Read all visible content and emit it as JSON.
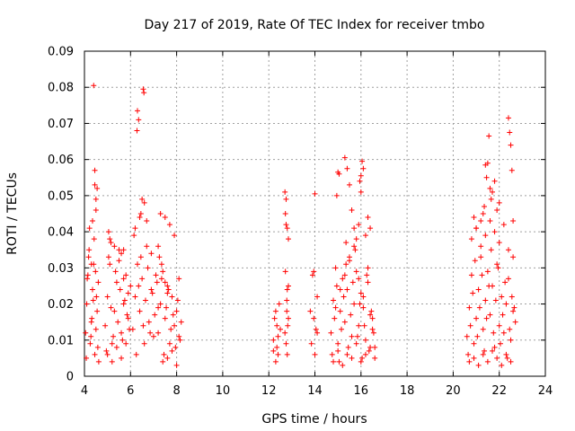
{
  "chart_data": {
    "type": "scatter",
    "title": "Day 217 of 2019, Rate Of TEC Index for receiver tmbo",
    "xlabel": "GPS time / hours",
    "ylabel": "ROTI / TECUs",
    "xlim": [
      4,
      24
    ],
    "ylim": [
      0,
      0.09
    ],
    "xticks": [
      "4",
      "6",
      "8",
      "10",
      "12",
      "14",
      "16",
      "18",
      "20",
      "22",
      "24"
    ],
    "yticks": [
      "0",
      "0.01",
      "0.02",
      "0.03",
      "0.04",
      "0.05",
      "0.06",
      "0.07",
      "0.08",
      "0.09"
    ],
    "grid": true,
    "marker": "+",
    "color": "#ff0000",
    "series": [
      {
        "x": [
          4.05,
          4.1,
          4.15,
          4.2,
          4.25,
          4.3,
          4.35,
          4.4,
          4.45,
          4.5,
          4.55,
          4.6,
          4.08,
          4.18,
          4.28,
          4.38,
          4.48,
          4.58,
          4.12,
          4.22,
          4.32,
          4.42,
          4.52,
          4.62,
          4.4,
          4.45,
          4.55,
          4.5,
          4.35,
          4.3,
          4.45,
          4.5,
          4.9,
          5.0,
          5.1,
          5.2,
          5.3,
          5.4,
          5.5,
          5.6,
          5.7,
          5.8,
          5.9,
          6.0,
          4.95,
          5.05,
          5.15,
          5.25,
          5.35,
          5.45,
          5.55,
          5.65,
          5.75,
          5.85,
          5.95,
          5.1,
          5.3,
          5.5,
          5.7,
          5.9,
          5.0,
          5.2,
          5.4,
          5.6,
          5.8,
          5.05,
          5.15,
          5.6,
          5.7,
          6.1,
          6.2,
          6.3,
          6.4,
          6.5,
          6.6,
          6.7,
          6.8,
          6.9,
          7.0,
          7.1,
          7.2,
          6.15,
          6.25,
          6.35,
          6.45,
          6.55,
          6.65,
          6.75,
          6.85,
          6.95,
          7.05,
          7.15,
          6.3,
          6.35,
          6.28,
          6.55,
          6.58,
          6.5,
          6.6,
          6.45,
          6.4,
          6.2,
          6.7,
          6.9,
          7.2,
          7.3,
          7.4,
          7.5,
          7.6,
          7.7,
          7.8,
          7.9,
          8.0,
          8.1,
          8.2,
          7.25,
          7.35,
          7.45,
          7.55,
          7.65,
          7.75,
          7.85,
          7.95,
          8.05,
          8.15,
          7.3,
          7.5,
          7.7,
          7.9,
          8.1,
          7.4,
          7.6,
          7.8,
          8.0,
          7.35,
          7.2,
          7.5,
          7.6,
          12.2,
          12.3,
          12.4,
          12.5,
          12.25,
          12.35,
          12.45,
          12.3,
          12.4,
          12.2,
          12.35,
          12.7,
          12.75,
          12.8,
          12.85,
          12.72,
          12.78,
          12.82,
          12.75,
          12.8,
          12.7,
          12.85,
          12.78,
          12.75,
          12.8,
          12.72,
          12.85,
          13.8,
          13.9,
          14.0,
          14.1,
          13.85,
          13.95,
          14.05,
          14.0,
          14.1,
          13.95,
          14.7,
          14.8,
          14.9,
          15.0,
          15.1,
          15.2,
          15.3,
          15.4,
          15.5,
          15.6,
          15.7,
          15.8,
          15.9,
          16.0,
          16.1,
          16.2,
          16.3,
          16.4,
          16.5,
          16.6,
          14.75,
          14.85,
          14.95,
          15.05,
          15.15,
          15.25,
          15.35,
          15.45,
          15.55,
          15.65,
          15.75,
          15.85,
          15.95,
          16.05,
          16.15,
          16.25,
          16.35,
          16.45,
          16.55,
          14.8,
          15.0,
          15.2,
          15.4,
          15.6,
          15.8,
          16.0,
          16.2,
          16.4,
          16.6,
          14.9,
          15.1,
          15.3,
          15.5,
          15.7,
          15.9,
          16.1,
          16.3,
          16.5,
          15.0,
          15.05,
          14.95,
          15.3,
          15.4,
          15.5,
          15.6,
          15.7,
          15.8,
          15.9,
          16.0,
          16.05,
          16.1,
          16.0,
          15.95,
          16.3,
          16.4,
          16.2,
          15.35,
          20.6,
          20.7,
          20.8,
          20.9,
          21.0,
          21.1,
          21.2,
          21.3,
          21.4,
          21.5,
          21.6,
          21.7,
          21.8,
          21.9,
          22.0,
          22.1,
          22.2,
          22.3,
          22.4,
          22.5,
          22.6,
          22.7,
          20.65,
          20.75,
          20.85,
          20.95,
          21.05,
          21.15,
          21.25,
          21.35,
          21.45,
          21.55,
          21.65,
          21.75,
          21.85,
          21.95,
          22.05,
          22.15,
          22.25,
          22.35,
          22.45,
          22.55,
          22.65,
          20.7,
          20.9,
          21.1,
          21.3,
          21.5,
          21.7,
          21.9,
          22.1,
          22.3,
          22.5,
          20.8,
          21.0,
          21.2,
          21.4,
          21.6,
          21.8,
          22.0,
          22.2,
          22.4,
          22.6,
          21.4,
          21.5,
          21.45,
          21.55,
          21.6,
          21.65,
          21.3,
          21.35,
          21.2,
          21.8,
          21.7,
          22.4,
          22.45,
          22.5,
          22.55,
          22.6,
          22.0,
          21.9,
          21.0,
          20.9
        ],
        "y": [
          0.012,
          0.02,
          0.028,
          0.035,
          0.009,
          0.015,
          0.024,
          0.031,
          0.006,
          0.013,
          0.018,
          0.026,
          0.005,
          0.033,
          0.011,
          0.021,
          0.029,
          0.008,
          0.027,
          0.041,
          0.016,
          0.038,
          0.022,
          0.004,
          0.0805,
          0.053,
          0.052,
          0.046,
          0.043,
          0.031,
          0.057,
          0.049,
          0.014,
          0.022,
          0.031,
          0.009,
          0.018,
          0.026,
          0.035,
          0.012,
          0.02,
          0.028,
          0.016,
          0.025,
          0.007,
          0.033,
          0.019,
          0.011,
          0.029,
          0.015,
          0.024,
          0.01,
          0.021,
          0.017,
          0.013,
          0.038,
          0.036,
          0.032,
          0.027,
          0.023,
          0.006,
          0.004,
          0.008,
          0.005,
          0.009,
          0.04,
          0.037,
          0.034,
          0.035,
          0.013,
          0.022,
          0.031,
          0.018,
          0.027,
          0.009,
          0.036,
          0.015,
          0.024,
          0.011,
          0.028,
          0.019,
          0.039,
          0.006,
          0.025,
          0.033,
          0.014,
          0.021,
          0.03,
          0.012,
          0.023,
          0.017,
          0.026,
          0.0735,
          0.071,
          0.068,
          0.0795,
          0.0785,
          0.049,
          0.048,
          0.045,
          0.044,
          0.041,
          0.043,
          0.034,
          0.012,
          0.02,
          0.029,
          0.016,
          0.025,
          0.009,
          0.022,
          0.014,
          0.018,
          0.011,
          0.015,
          0.033,
          0.027,
          0.006,
          0.019,
          0.024,
          0.013,
          0.017,
          0.008,
          0.021,
          0.01,
          0.045,
          0.044,
          0.042,
          0.039,
          0.027,
          0.004,
          0.005,
          0.007,
          0.003,
          0.031,
          0.036,
          0.026,
          0.023,
          0.01,
          0.018,
          0.006,
          0.013,
          0.016,
          0.008,
          0.02,
          0.004,
          0.011,
          0.007,
          0.014,
          0.051,
          0.049,
          0.041,
          0.025,
          0.029,
          0.018,
          0.014,
          0.009,
          0.006,
          0.012,
          0.038,
          0.021,
          0.042,
          0.024,
          0.045,
          0.016,
          0.018,
          0.028,
          0.0505,
          0.012,
          0.009,
          0.029,
          0.013,
          0.006,
          0.022,
          0.016,
          0.012,
          0.021,
          0.03,
          0.009,
          0.018,
          0.027,
          0.015,
          0.024,
          0.033,
          0.011,
          0.02,
          0.029,
          0.014,
          0.023,
          0.019,
          0.01,
          0.026,
          0.017,
          0.013,
          0.008,
          0.006,
          0.016,
          0.025,
          0.004,
          0.013,
          0.022,
          0.031,
          0.008,
          0.017,
          0.026,
          0.035,
          0.011,
          0.02,
          0.005,
          0.014,
          0.028,
          0.007,
          0.018,
          0.012,
          0.004,
          0.007,
          0.003,
          0.006,
          0.005,
          0.009,
          0.004,
          0.006,
          0.008,
          0.005,
          0.019,
          0.024,
          0.028,
          0.032,
          0.036,
          0.027,
          0.022,
          0.03,
          0.016,
          0.0565,
          0.056,
          0.05,
          0.0605,
          0.0575,
          0.053,
          0.046,
          0.041,
          0.038,
          0.042,
          0.051,
          0.0595,
          0.0575,
          0.0555,
          0.054,
          0.044,
          0.041,
          0.039,
          0.037,
          0.011,
          0.019,
          0.028,
          0.009,
          0.016,
          0.024,
          0.033,
          0.013,
          0.021,
          0.029,
          0.017,
          0.025,
          0.008,
          0.031,
          0.014,
          0.022,
          0.012,
          0.02,
          0.027,
          0.01,
          0.018,
          0.015,
          0.006,
          0.014,
          0.023,
          0.032,
          0.011,
          0.019,
          0.028,
          0.007,
          0.016,
          0.025,
          0.035,
          0.012,
          0.021,
          0.03,
          0.009,
          0.017,
          0.026,
          0.005,
          0.013,
          0.022,
          0.019,
          0.004,
          0.005,
          0.003,
          0.006,
          0.004,
          0.007,
          0.005,
          0.003,
          0.006,
          0.004,
          0.038,
          0.041,
          0.036,
          0.039,
          0.043,
          0.04,
          0.037,
          0.042,
          0.035,
          0.033,
          0.0585,
          0.059,
          0.055,
          0.0665,
          0.052,
          0.049,
          0.045,
          0.047,
          0.043,
          0.054,
          0.051,
          0.0715,
          0.0675,
          0.064,
          0.057,
          0.043,
          0.048,
          0.046,
          0.041,
          0.044
        ]
      }
    ]
  }
}
